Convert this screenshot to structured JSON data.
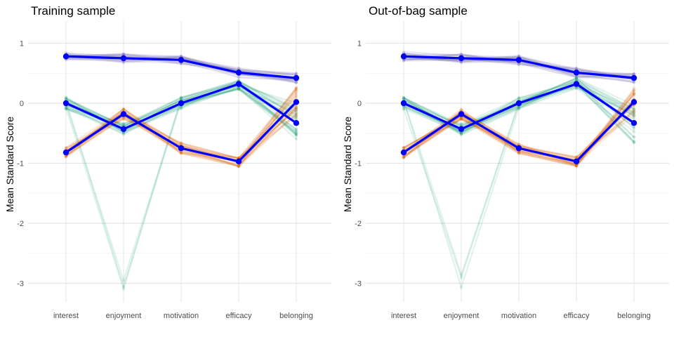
{
  "chart_data": [
    {
      "type": "line",
      "title": "Training sample",
      "xlabel": "",
      "ylabel": "Mean Standard Score",
      "categories": [
        "interest",
        "enjoyment",
        "motivation",
        "efficacy",
        "belonging"
      ],
      "yticks": [
        1,
        0,
        -1,
        -2,
        -3
      ],
      "ylim": [
        -3.35,
        1.35
      ],
      "grid": true,
      "colors": {
        "purple": "#7570b3",
        "green": "#1b9e77",
        "orange": "#d95f02",
        "highlight": "#0000ff",
        "grid": "#ebebeb"
      },
      "series": [
        {
          "values": [
            0.78,
            0.75,
            0.72,
            0.51,
            0.42
          ]
        },
        {
          "values": [
            0.0,
            -0.43,
            0.0,
            0.32,
            -0.33
          ]
        },
        {
          "values": [
            -0.82,
            -0.18,
            -0.75,
            -0.97,
            0.02
          ]
        }
      ]
    },
    {
      "type": "line",
      "title": "Out-of-bag sample",
      "xlabel": "",
      "ylabel": "Mean Standard Score",
      "categories": [
        "interest",
        "enjoyment",
        "motivation",
        "efficacy",
        "belonging"
      ],
      "yticks": [
        1,
        0,
        -1,
        -2,
        -3
      ],
      "ylim": [
        -3.35,
        1.35
      ],
      "grid": true,
      "colors": {
        "purple": "#7570b3",
        "green": "#1b9e77",
        "orange": "#d95f02",
        "highlight": "#0000ff",
        "grid": "#ebebeb"
      },
      "series": [
        {
          "values": [
            0.78,
            0.75,
            0.72,
            0.51,
            0.42
          ]
        },
        {
          "values": [
            0.0,
            -0.43,
            0.0,
            0.32,
            -0.33
          ]
        },
        {
          "values": [
            -0.82,
            -0.18,
            -0.75,
            -0.97,
            0.02
          ]
        }
      ]
    }
  ]
}
